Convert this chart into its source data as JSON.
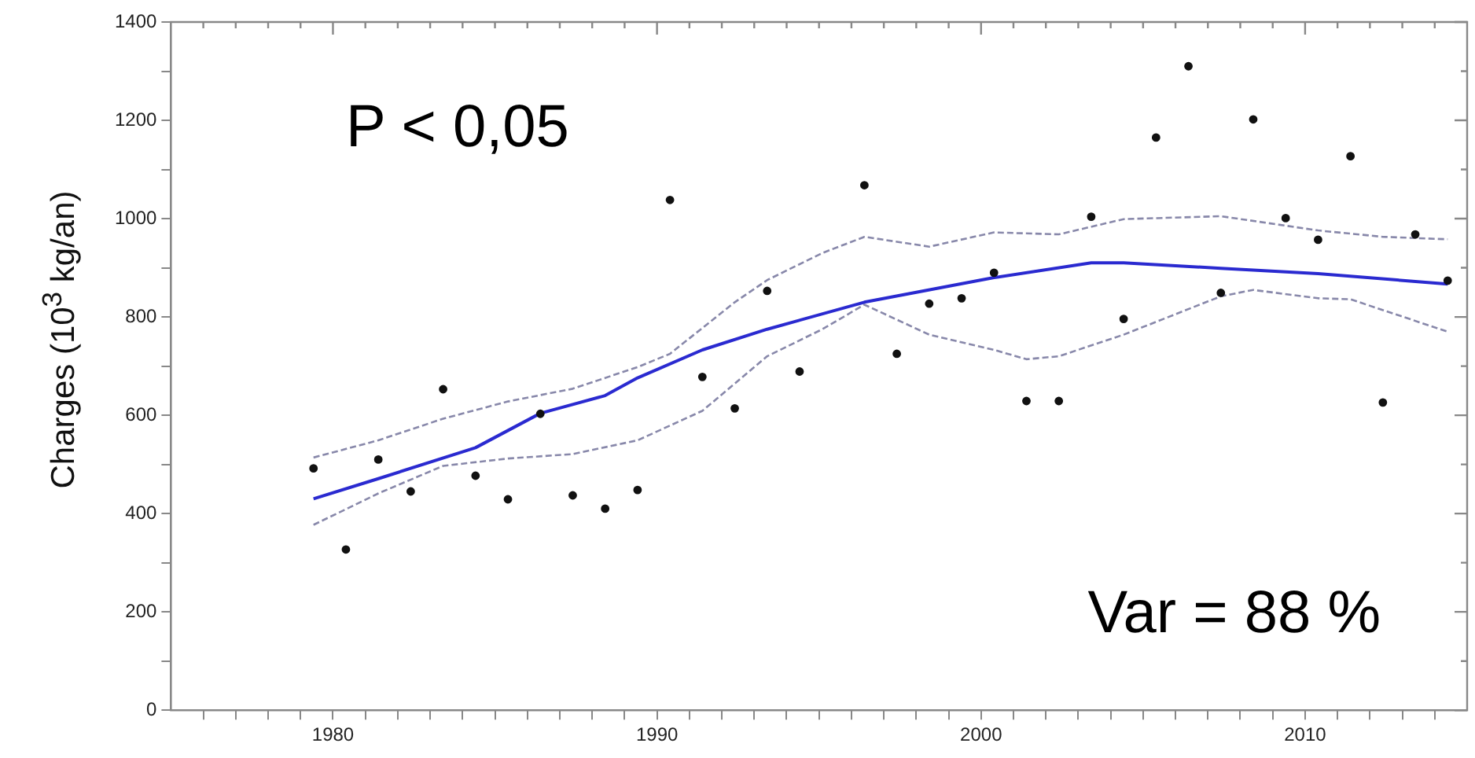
{
  "chart_data": {
    "type": "scatter",
    "ylabel": "Charges (10$^{3}$ kg/an)",
    "annotations": [
      "P < 0,05",
      "Var = 88 %"
    ],
    "xlim": [
      1975,
      2015
    ],
    "xticks": [
      {
        "value": 1976,
        "label": null
      },
      {
        "value": 1977,
        "label": null
      },
      {
        "value": 1978,
        "label": null
      },
      {
        "value": 1979,
        "label": null
      },
      1980,
      {
        "value": 1981,
        "label": null
      },
      {
        "value": 1982,
        "label": null
      },
      {
        "value": 1983,
        "label": null
      },
      {
        "value": 1984,
        "label": null
      },
      {
        "value": 1985,
        "label": null
      },
      {
        "value": 1986,
        "label": null
      },
      {
        "value": 1987,
        "label": null
      },
      {
        "value": 1988,
        "label": null
      },
      {
        "value": 1989,
        "label": null
      },
      1990,
      {
        "value": 1991,
        "label": null
      },
      {
        "value": 1992,
        "label": null
      },
      {
        "value": 1993,
        "label": null
      },
      {
        "value": 1994,
        "label": null
      },
      {
        "value": 1995,
        "label": null
      },
      {
        "value": 1996,
        "label": null
      },
      {
        "value": 1997,
        "label": null
      },
      {
        "value": 1998,
        "label": null
      },
      {
        "value": 1999,
        "label": null
      },
      2000,
      {
        "value": 2001,
        "label": null
      },
      {
        "value": 2002,
        "label": null
      },
      {
        "value": 2003,
        "label": null
      },
      {
        "value": 2004,
        "label": null
      },
      {
        "value": 2005,
        "label": null
      },
      {
        "value": 2006,
        "label": null
      },
      {
        "value": 2007,
        "label": null
      },
      {
        "value": 2008,
        "label": null
      },
      {
        "value": 2009,
        "label": null
      },
      2010,
      {
        "value": 2011,
        "label": null
      },
      {
        "value": 2012,
        "label": null
      },
      {
        "value": 2013,
        "label": null
      },
      {
        "value": 2014,
        "label": null
      }
    ],
    "ylim": [
      0,
      1400
    ],
    "yticks": [
      0,
      {
        "value": 100,
        "label": null
      },
      200,
      {
        "value": 300,
        "label": null
      },
      400,
      {
        "value": 500,
        "label": null
      },
      600,
      {
        "value": 700,
        "label": null
      },
      800,
      {
        "value": 900,
        "label": null
      },
      1000,
      {
        "value": 1100,
        "label": null
      },
      1200,
      {
        "value": 1300,
        "label": null
      },
      1400
    ],
    "grid": false,
    "legend": false,
    "marker": "circle",
    "series": [
      {
        "type": "scatter",
        "color": "#111111",
        "x": [
          1979.4,
          1980.4,
          1981.4,
          1982.4,
          1983.4,
          1984.4,
          1985.4,
          1986.4,
          1987.4,
          1988.4,
          1989.4,
          1990.4,
          1991.4,
          1992.4,
          1993.4,
          1994.4,
          1996.4,
          1997.4,
          1998.4,
          1999.4,
          2000.4,
          2001.4,
          2002.4,
          2003.4,
          2004.4,
          2005.4,
          2006.4,
          2007.4,
          2008.4,
          2009.4,
          2010.4,
          2011.4,
          2012.4,
          2013.4,
          2014.4
        ],
        "values": [
          492,
          327,
          510,
          445,
          653,
          477,
          429,
          603,
          437,
          410,
          448,
          1038,
          678,
          614,
          853,
          689,
          1068,
          725,
          827,
          838,
          890,
          629,
          629,
          1004,
          796,
          1165,
          1310,
          849,
          1202,
          1001,
          957,
          1127,
          626,
          968,
          874
        ]
      },
      {
        "type": "line",
        "color": "#2a2ad0",
        "line_style": "solid",
        "marker": "none",
        "x": [
          1979.4,
          1981.4,
          1984.4,
          1986.4,
          1988.4,
          1989.4,
          1991.4,
          1993.4,
          1996.4,
          2000.4,
          2003.4,
          2004.4,
          2007.4,
          2010.4,
          2014.4
        ],
        "values": [
          430,
          471,
          534,
          604,
          640,
          676,
          733,
          775,
          830,
          880,
          910,
          910,
          899,
          888,
          867
        ]
      },
      {
        "type": "line",
        "color": "#8888aa",
        "line_style": "dashed",
        "marker": "none",
        "x": [
          1979.4,
          1981.4,
          1983.4,
          1985.4,
          1987.4,
          1989.4,
          1990.4,
          1992.4,
          1993.4,
          1995.1,
          1996.4,
          1998.4,
          2000.4,
          2002.4,
          2004.4,
          2007.4,
          2010.4,
          2012.4,
          2014.4
        ],
        "values": [
          514,
          549,
          593,
          628,
          654,
          698,
          725,
          830,
          875,
          930,
          963,
          943,
          972,
          968,
          999,
          1005,
          976,
          963,
          958
        ]
      },
      {
        "type": "line",
        "color": "#8888aa",
        "line_style": "dashed",
        "marker": "none",
        "x": [
          1979.4,
          1981.4,
          1983.4,
          1985.4,
          1987.4,
          1989.4,
          1991.4,
          1993.4,
          1995.1,
          1996.4,
          1998.4,
          2000.4,
          2001.4,
          2002.4,
          2004.4,
          2007.4,
          2008.4,
          2010.4,
          2011.4,
          2014.4
        ],
        "values": [
          377,
          441,
          497,
          512,
          521,
          549,
          609,
          720,
          775,
          825,
          764,
          733,
          714,
          720,
          764,
          842,
          855,
          838,
          836,
          770
        ]
      }
    ]
  }
}
